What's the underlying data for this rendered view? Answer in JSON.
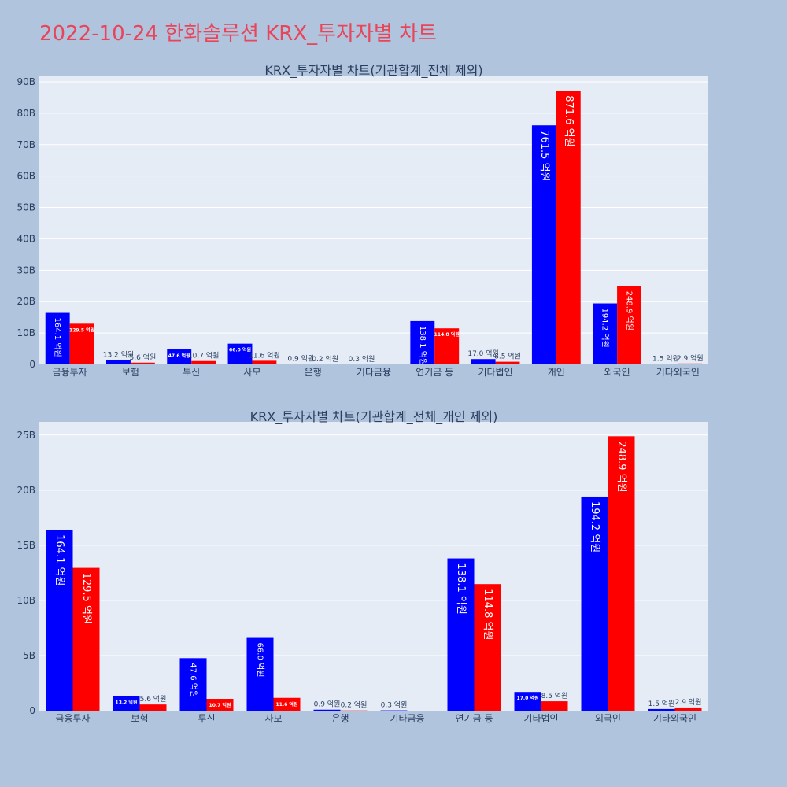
{
  "page": {
    "title": "2022-10-24 한화솔루션 KRX_투자자별 차트"
  },
  "colors": {
    "buy": "#0000ff",
    "sell": "#ff0000",
    "plot_bg": "#e5ecf6",
    "paper_bg": "#b0c4de",
    "title": "#e8455a",
    "text": "#2a3f5f"
  },
  "chart_data": [
    {
      "type": "bar",
      "title": "KRX_투자자별 차트(기관합계_전체 제외)",
      "categories": [
        "금융투자",
        "보험",
        "투신",
        "사모",
        "은행",
        "기타금융",
        "연기금 등",
        "기타법인",
        "개인",
        "외국인",
        "기타외국인"
      ],
      "series": [
        {
          "name": "buy",
          "values": [
            16.41,
            1.32,
            4.76,
            6.6,
            0.09,
            0.03,
            13.81,
            1.7,
            76.15,
            19.42,
            0.15
          ],
          "labels": [
            "164.1 억원",
            "13.2 억원",
            "47.6 억원",
            "66.0 억원",
            "0.9 억원",
            "0.3 억원",
            "138.1 억원",
            "17.0 억원",
            "761.5 억원",
            "194.2 억원",
            "1.5 억원"
          ]
        },
        {
          "name": "sell",
          "values": [
            12.95,
            0.56,
            1.07,
            1.16,
            0.02,
            0,
            11.48,
            0.85,
            87.16,
            24.89,
            0.29
          ],
          "labels": [
            "129.5 억원",
            "5.6 억원",
            "10.7 억원",
            "11.6 억원",
            "0.2 억원",
            "",
            "114.8 억원",
            "8.5 억원",
            "871.6 억원",
            "248.9 억원",
            "2.9 억원"
          ]
        }
      ],
      "ylim": [
        0,
        92
      ],
      "yticks": [
        0,
        10,
        20,
        30,
        40,
        50,
        60,
        70,
        80,
        90
      ],
      "ytick_labels": [
        "0",
        "10B",
        "20B",
        "30B",
        "40B",
        "50B",
        "60B",
        "70B",
        "80B",
        "90B"
      ]
    },
    {
      "type": "bar",
      "title": "KRX_투자자별 차트(기관합계_전체_개인 제외)",
      "categories": [
        "금융투자",
        "보험",
        "투신",
        "사모",
        "은행",
        "기타금융",
        "연기금 등",
        "기타법인",
        "외국인",
        "기타외국인"
      ],
      "series": [
        {
          "name": "buy",
          "values": [
            16.41,
            1.32,
            4.76,
            6.6,
            0.09,
            0.03,
            13.81,
            1.7,
            19.42,
            0.15
          ],
          "labels": [
            "164.1 억원",
            "13.2 억원",
            "47.6 억원",
            "66.0 억원",
            "0.9 억원",
            "0.3 억원",
            "138.1 억원",
            "17.0 억원",
            "194.2 억원",
            "1.5 억원"
          ]
        },
        {
          "name": "sell",
          "values": [
            12.95,
            0.56,
            1.07,
            1.16,
            0.02,
            0,
            11.48,
            0.85,
            24.89,
            0.29
          ],
          "labels": [
            "129.5 억원",
            "5.6 억원",
            "10.7 억원",
            "11.6 억원",
            "0.2 억원",
            "",
            "114.8 억원",
            "8.5 억원",
            "248.9 억원",
            "2.9 억원"
          ]
        }
      ],
      "ylim": [
        0,
        26.2
      ],
      "yticks": [
        0,
        5,
        10,
        15,
        20,
        25
      ],
      "ytick_labels": [
        "0",
        "5B",
        "10B",
        "15B",
        "20B",
        "25B"
      ]
    }
  ]
}
